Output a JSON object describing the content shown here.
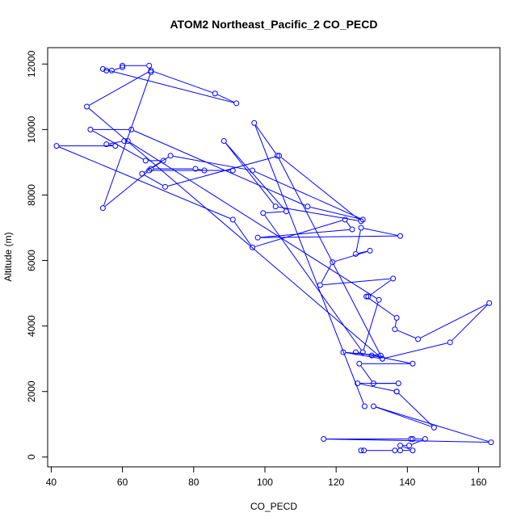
{
  "chart_data": {
    "type": "line",
    "title": "ATOM2 Northeast_Pacific_2 CO_PECD",
    "xlabel": "CO_PECD",
    "ylabel": "Altitude (m)",
    "xlim": [
      39,
      166
    ],
    "ylim": [
      -300,
      12500
    ],
    "xticks": [
      40,
      60,
      80,
      100,
      120,
      140,
      160
    ],
    "yticks": [
      0,
      2000,
      4000,
      6000,
      8000,
      10000,
      12000
    ],
    "color": "#0000ff",
    "markers": "open-circle",
    "series": [
      {
        "x": [
          127.0,
          127.8,
          136.5,
          138.0,
          141.5,
          138.0,
          140.5,
          145.0,
          141.5,
          141.0,
          116.5,
          163.5,
          130.5,
          147.5,
          137.0,
          137.0,
          126.0,
          137.5,
          130.5,
          126.5,
          141.5,
          125.5,
          130.0,
          132.5,
          122.0,
          133.0,
          152.0,
          163.0,
          143.0,
          136.5,
          137.0,
          128.5,
          129.0,
          136.0,
          115.5,
          119.0,
          129.5,
          125.5,
          127.0,
          138.0,
          98.0,
          124.5,
          122.5,
          96.5,
          91.0,
          41.5,
          58.0,
          55.5,
          60.5,
          61.5,
          132.0,
          127.5,
          99.5,
          106.0,
          88.5,
          103.0,
          127.0,
          104.0,
          72.0,
          65.5,
          73.5,
          96.5,
          127.5,
          112.0,
          62.5,
          51.0,
          66.5,
          71.5,
          68.0,
          80.5,
          83.0,
          91.0,
          67.5,
          54.5,
          68.0,
          67.5,
          60.0,
          60.0,
          57.0,
          55.5,
          54.5,
          92.0,
          86.0,
          68.0,
          50.0,
          133.0,
          103.5,
          97.0,
          128.0
        ],
        "y": [
          200,
          200,
          200,
          200,
          200,
          350,
          350,
          550,
          550,
          550,
          550,
          450,
          1550,
          900,
          2000,
          2000,
          2250,
          2250,
          2250,
          2850,
          2850,
          3200,
          3100,
          3100,
          3200,
          3000,
          3500,
          4700,
          3600,
          3900,
          4250,
          4900,
          4900,
          5450,
          5250,
          5950,
          6300,
          6200,
          7000,
          6750,
          6700,
          6950,
          7250,
          6400,
          7250,
          9500,
          9500,
          9550,
          9650,
          9650,
          4800,
          3200,
          7450,
          7500,
          9650,
          7650,
          7200,
          9200,
          8250,
          8650,
          9200,
          8750,
          7250,
          7650,
          10000,
          10000,
          9050,
          9050,
          8800,
          8800,
          8750,
          8750,
          8750,
          7600,
          11750,
          11950,
          11950,
          11900,
          11800,
          11800,
          11850,
          10800,
          11100,
          11800,
          10700,
          3000,
          9200,
          10200,
          1550
        ]
      }
    ]
  }
}
